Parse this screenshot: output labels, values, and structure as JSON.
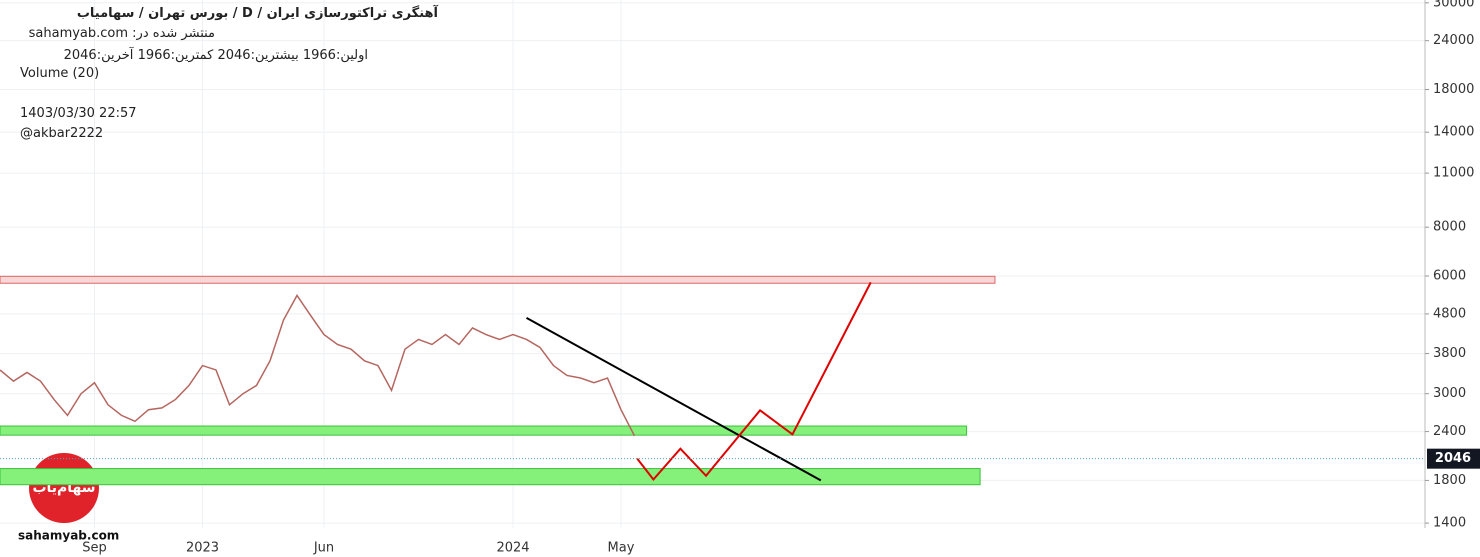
{
  "header": {
    "title": "آهنگری  تراکتورسازی  ایران  /  D  /  بورس تهران / سهامیاب",
    "published": "منتشر شده در: sahamyab.com",
    "ohlc": "اولین:1966  بیشترین:2046  کمترین:1966  آخرین:2046",
    "indicator": "Volume (20)",
    "datetime": "1403/03/30 22:57",
    "author": "@akbar2222"
  },
  "watermark": {
    "logo": "سهام‌یاب",
    "site": "sahamyab.com"
  },
  "chart_data": {
    "type": "line",
    "log_scale": true,
    "grid": true,
    "color": "#b5665f",
    "categories": [
      null,
      null,
      null,
      null,
      null,
      null,
      null,
      "Sep",
      null,
      null,
      null,
      null,
      null,
      null,
      null,
      "2023",
      null,
      null,
      null,
      null,
      null,
      null,
      null,
      null,
      "Jun",
      null,
      null,
      null,
      null,
      null,
      null,
      null,
      null,
      null,
      null,
      null,
      null,
      null,
      "2024",
      null,
      null,
      null,
      null,
      null,
      null,
      null,
      "May",
      null
    ],
    "values": [
      3450,
      3230,
      3400,
      3230,
      2900,
      2640,
      3000,
      3200,
      2810,
      2640,
      2550,
      2730,
      2760,
      2900,
      3150,
      3540,
      3450,
      2810,
      3000,
      3150,
      3640,
      4630,
      5350,
      4760,
      4250,
      4010,
      3900,
      3640,
      3540,
      3060,
      3900,
      4130,
      4010,
      4250,
      4010,
      4420,
      4250,
      4130,
      4250,
      4130,
      3940,
      3540,
      3340,
      3290,
      3200,
      3290,
      2730,
      2340
    ],
    "last_price": 2046,
    "last_price_color": "#131722",
    "ylim": [
      1360,
      30500
    ],
    "yticks": [
      1400,
      1800,
      2400,
      3000,
      3800,
      4800,
      6000,
      8000,
      11000,
      14000,
      18000,
      24000,
      30000
    ],
    "zones": [
      {
        "low": 5750,
        "high": 5990,
        "x": [
          0,
          73.7
        ],
        "color": "#f8d7d7",
        "border": "#e06666"
      },
      {
        "low": 2350,
        "high": 2480,
        "x": [
          0,
          71.6
        ],
        "color": "#85f07a",
        "border": "#3cc03c"
      },
      {
        "low": 1755,
        "high": 1930,
        "x": [
          0,
          72.6
        ],
        "color": "#85f07a",
        "border": "#3cc03c"
      }
    ],
    "trendline": {
      "color": "#000000",
      "points": [
        {
          "x": 39.0,
          "y": 4690
        },
        {
          "x": 60.8,
          "y": 1800
        }
      ]
    },
    "projection": {
      "color": "#e00000",
      "points": [
        {
          "x": 47.2,
          "y": 2046
        },
        {
          "x": 48.4,
          "y": 1810
        },
        {
          "x": 50.4,
          "y": 2170
        },
        {
          "x": 52.3,
          "y": 1850
        },
        {
          "x": 56.3,
          "y": 2720
        },
        {
          "x": 58.7,
          "y": 2360
        },
        {
          "x": 64.5,
          "y": 5780
        }
      ]
    }
  }
}
